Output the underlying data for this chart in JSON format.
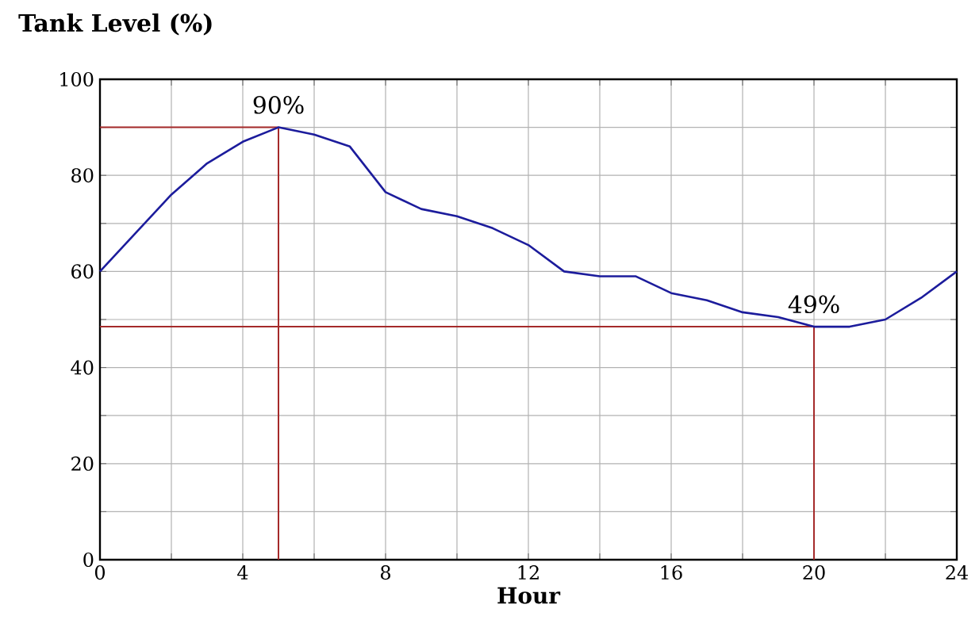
{
  "chart_data": {
    "type": "line",
    "title": "Tank Level (%)",
    "xlabel": "Hour",
    "x": [
      0,
      1,
      2,
      3,
      4,
      5,
      6,
      7,
      8,
      9,
      10,
      11,
      12,
      13,
      14,
      15,
      16,
      17,
      18,
      19,
      20,
      21,
      22,
      23,
      24
    ],
    "series": [
      {
        "color": "#1c1c9c",
        "values": [
          60,
          68,
          76,
          82.5,
          87,
          90,
          88.5,
          86,
          76.5,
          73,
          71.5,
          69,
          65.5,
          60,
          59,
          59,
          55.5,
          54,
          51.5,
          50.5,
          48.5,
          48.5,
          50,
          54.5,
          60
        ]
      }
    ],
    "xlim": [
      0,
      24
    ],
    "ylim": [
      0,
      100
    ],
    "xticks": [
      0,
      {
        "value": 2,
        "label": null
      },
      4,
      {
        "value": 6,
        "label": null
      },
      8,
      {
        "value": 10,
        "label": null
      },
      12,
      {
        "value": 14,
        "label": null
      },
      16,
      {
        "value": 18,
        "label": null
      },
      20,
      {
        "value": 22,
        "label": null
      },
      24
    ],
    "yticks": [
      0,
      {
        "value": 10,
        "label": null
      },
      20,
      {
        "value": 30,
        "label": null
      },
      40,
      {
        "value": 50,
        "label": null
      },
      60,
      {
        "value": 70,
        "label": null
      },
      80,
      {
        "value": 90,
        "label": null
      },
      100
    ],
    "grid": true,
    "marker": "none",
    "line_style": "solid",
    "ref_lines": [
      {
        "axis": "y",
        "value": 90,
        "color": "#a52a2a"
      },
      {
        "axis": "x",
        "value": 5,
        "color": "#a52a2a"
      },
      {
        "axis": "y",
        "value": 48.5,
        "color": "#a52a2a"
      },
      {
        "axis": "x",
        "value": 20,
        "color": "#a52a2a"
      }
    ],
    "annotations": [
      {
        "text": "90%",
        "x": 5,
        "y": 90
      },
      {
        "text": "49%",
        "x": 20,
        "y": 48.5
      }
    ]
  }
}
